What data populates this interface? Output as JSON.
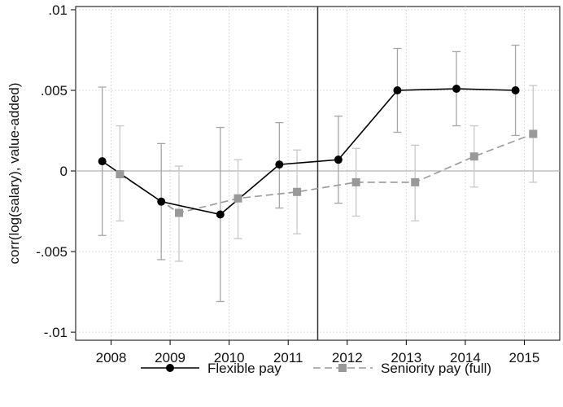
{
  "chart_data": {
    "type": "line",
    "title": "",
    "xlabel": "",
    "ylabel": "corr(log(salary), value-added)",
    "categories": [
      "2008",
      "2009",
      "2010",
      "2011",
      "2012",
      "2013",
      "2014",
      "2015"
    ],
    "x_ticks": [
      "2008",
      "2009",
      "2010",
      "2011",
      "2012",
      "2013",
      "2014",
      "2015"
    ],
    "y_ticks": [
      ".01",
      ".005",
      "0",
      "-.005",
      "-.01"
    ],
    "y_tick_values": [
      0.01,
      0.005,
      0,
      -0.005,
      -0.01
    ],
    "ylim": [
      -0.0105,
      0.0102
    ],
    "xlim": [
      2007.4,
      2015.6
    ],
    "grid": true,
    "reference_line_y": 0,
    "vertical_line_x": 2011.5,
    "legend_position": "bottom",
    "series": [
      {
        "name": "Flexible pay",
        "color": "#000000",
        "marker": "circle",
        "line_style": "solid",
        "errorbar_color": "#a6a6a6",
        "x": [
          2007.85,
          2008.85,
          2009.85,
          2010.85,
          2011.85,
          2012.85,
          2013.85,
          2014.85
        ],
        "values": [
          0.0006,
          -0.0019,
          -0.0027,
          0.0004,
          0.0007,
          0.005,
          0.0051,
          0.005
        ],
        "ci_low": [
          -0.004,
          -0.0055,
          -0.0081,
          -0.0023,
          -0.002,
          0.0024,
          0.0028,
          0.0022
        ],
        "ci_high": [
          0.0052,
          0.0017,
          0.0027,
          0.003,
          0.0034,
          0.0076,
          0.0074,
          0.0078
        ]
      },
      {
        "name": "Seniority pay (full)",
        "color": "#999999",
        "marker": "square",
        "line_style": "dashed",
        "errorbar_color": "#c8c8c8",
        "x": [
          2008.15,
          2009.15,
          2010.15,
          2011.15,
          2012.15,
          2013.15,
          2014.15,
          2015.15
        ],
        "values": [
          -0.0002,
          -0.0026,
          -0.0017,
          -0.0013,
          -0.0007,
          -0.0007,
          0.0009,
          0.0023
        ],
        "ci_low": [
          -0.0031,
          -0.0056,
          -0.0042,
          -0.0039,
          -0.0028,
          -0.0031,
          -0.001,
          -0.0007
        ],
        "ci_high": [
          0.0028,
          0.0003,
          0.0007,
          0.0013,
          0.0014,
          0.0016,
          0.0028,
          0.0053
        ]
      }
    ]
  }
}
